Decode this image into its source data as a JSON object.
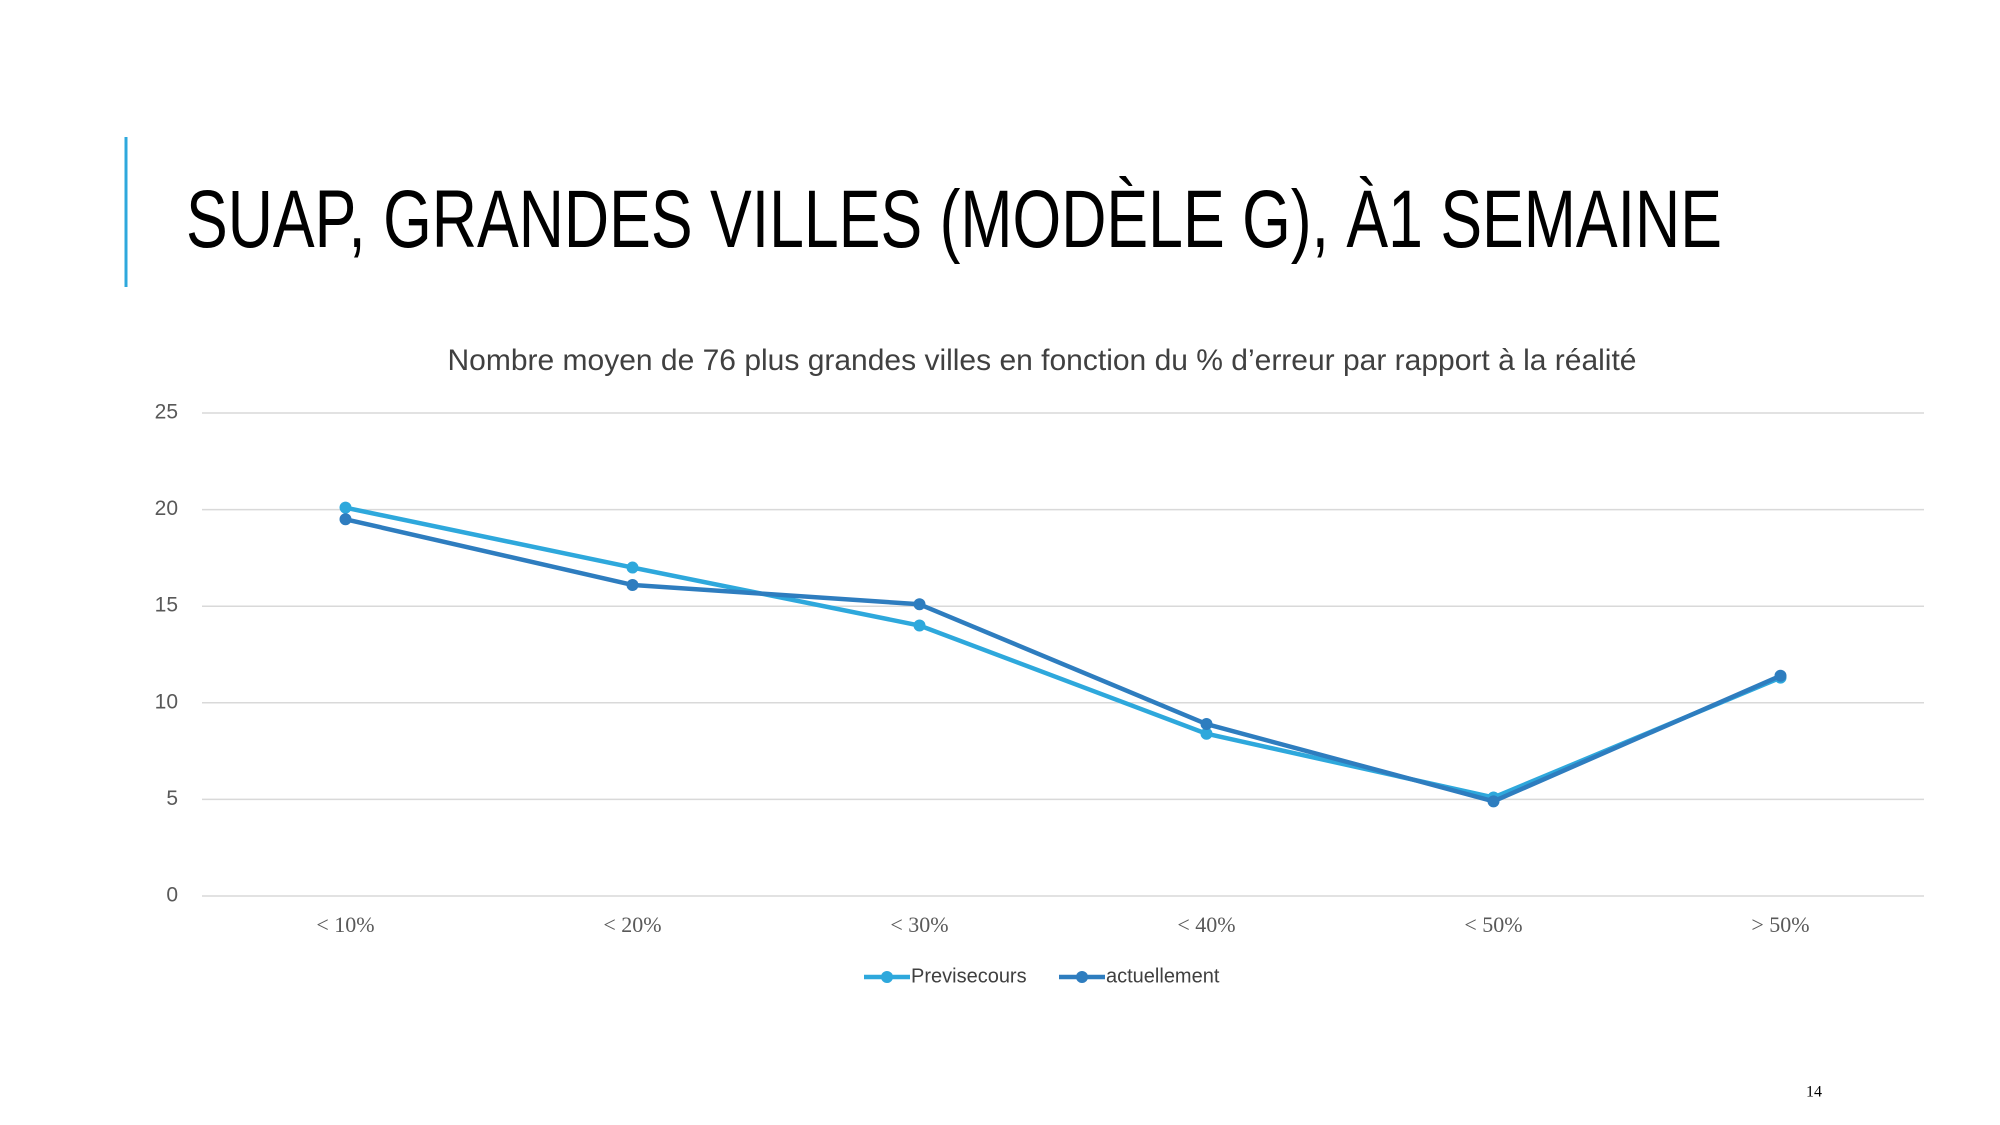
{
  "header": {
    "title": "SUAP, GRANDES VILLES (MODÈLE G), À1 SEMAINE"
  },
  "chart_data": {
    "type": "line",
    "title": "Nombre moyen de 76 plus grandes villes en fonction du % d’erreur par rapport à la réalité",
    "categories": [
      "< 10%",
      "< 20%",
      "< 30%",
      "< 40%",
      "< 50%",
      "> 50%"
    ],
    "series": [
      {
        "name": "Previsecours",
        "color": "#2ea8dc",
        "values": [
          20.1,
          17,
          14,
          8.4,
          5.1,
          11.3
        ]
      },
      {
        "name": "actuellement",
        "color": "#2e7dbf",
        "values": [
          19.5,
          16.1,
          15.1,
          8.9,
          4.9,
          11.4
        ]
      }
    ],
    "ylim": [
      0,
      25
    ],
    "yticks": [
      0,
      5,
      10,
      15,
      20,
      25
    ],
    "grid": true,
    "legend": "bottom"
  },
  "footer": {
    "page_number": "14"
  }
}
